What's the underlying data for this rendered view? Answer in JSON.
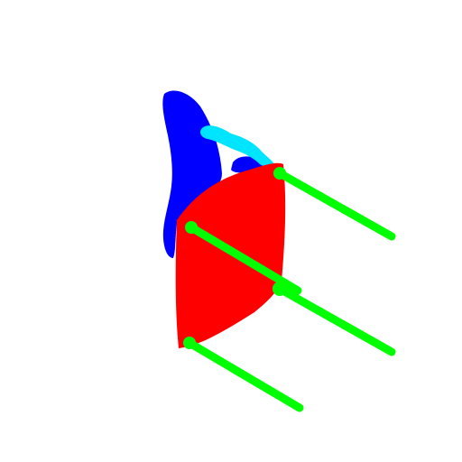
{
  "scene": {
    "subject": "chair-segmentation-mask",
    "background_color": "#ffffff",
    "parts": [
      {
        "part": "back",
        "color": "#0000ff"
      },
      {
        "part": "arm",
        "color": "#00e5ff"
      },
      {
        "part": "seat",
        "color": "#ff0000"
      },
      {
        "part": "legs",
        "color": "#00ff00"
      }
    ]
  }
}
